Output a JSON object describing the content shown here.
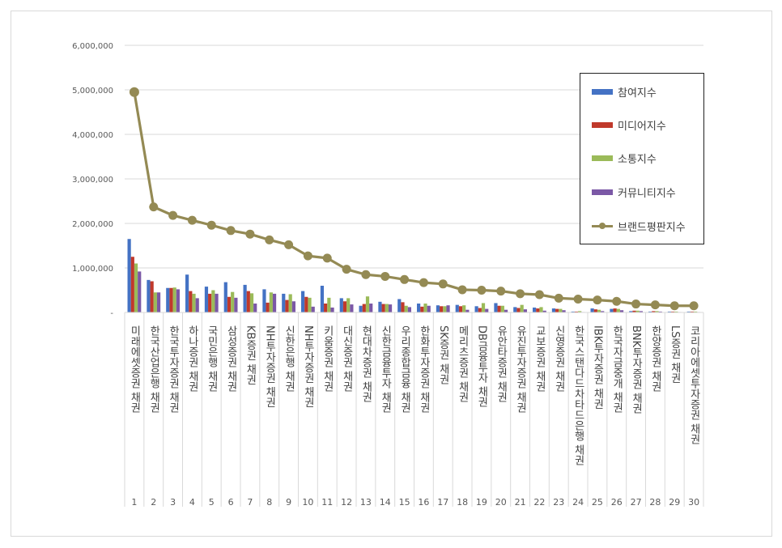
{
  "colors": {
    "participation": "#4472c4",
    "media": "#c0392b",
    "communication": "#9bbb59",
    "community": "#7b58a6",
    "brand": "#948a54",
    "grid": "#d9d9d9"
  },
  "chart_data": {
    "type": "bar",
    "combo_line_series": "브랜드평판지수",
    "ylim": [
      0,
      6000000
    ],
    "y_ticks": [
      "6,000,000",
      "5,000,000",
      "4,000,000",
      "3,000,000",
      "2,000,000",
      "1,000,000",
      "-"
    ],
    "y_tick_values": [
      6000000,
      5000000,
      4000000,
      3000000,
      2000000,
      1000000,
      0
    ],
    "grid": true,
    "legend_position": "right",
    "categories": [
      "미래에셋증권 채권",
      "한국산업은행 채권",
      "한국투자증권 채권",
      "하나증권 채권",
      "국민은행 채권",
      "삼성증권 채권",
      "KB증권 채권",
      "NH투자증권 채권",
      "신한은행 채권",
      "NH투자증권 채권",
      "키움증권 채권",
      "대신증권 채권",
      "현대차증권 채권",
      "신한금융투자 채권",
      "우리종합금융 채권",
      "한화투자증권 채권",
      "SK증권 채권",
      "메리츠증권 채권",
      "DB금융투자 채권",
      "유안타증권 채권",
      "유진투자증권 채권",
      "교보증권 채권",
      "신영증권 채권",
      "한국스탠다드차타드은행 채권",
      "IBK투자증권 채권",
      "한국자금중개 채권",
      "BNK투자증권 채권",
      "한양증권 채권",
      "LS증권 채권",
      "코리아에셋투자증권 채권"
    ],
    "ranks": [
      "1",
      "2",
      "3",
      "4",
      "5",
      "6",
      "7",
      "8",
      "9",
      "10",
      "11",
      "12",
      "13",
      "14",
      "15",
      "16",
      "17",
      "18",
      "19",
      "20",
      "21",
      "22",
      "23",
      "24",
      "25",
      "26",
      "27",
      "28",
      "29",
      "30"
    ],
    "series": [
      {
        "name": "참여지수",
        "kind": "bar",
        "values": [
          1650000,
          730000,
          550000,
          850000,
          580000,
          680000,
          620000,
          520000,
          420000,
          480000,
          600000,
          320000,
          150000,
          240000,
          300000,
          200000,
          160000,
          170000,
          140000,
          210000,
          120000,
          110000,
          90000,
          20000,
          90000,
          80000,
          30000,
          20000,
          20000,
          20000
        ]
      },
      {
        "name": "미디어지수",
        "kind": "bar",
        "values": [
          1250000,
          700000,
          550000,
          480000,
          420000,
          350000,
          480000,
          220000,
          280000,
          350000,
          200000,
          250000,
          190000,
          190000,
          230000,
          130000,
          140000,
          140000,
          100000,
          150000,
          100000,
          90000,
          80000,
          20000,
          70000,
          90000,
          40000,
          30000,
          20000,
          20000
        ]
      },
      {
        "name": "소통지수",
        "kind": "bar",
        "values": [
          1100000,
          450000,
          560000,
          420000,
          500000,
          460000,
          430000,
          450000,
          410000,
          330000,
          330000,
          320000,
          360000,
          190000,
          150000,
          200000,
          140000,
          160000,
          210000,
          150000,
          170000,
          120000,
          80000,
          30000,
          60000,
          80000,
          40000,
          30000,
          20000,
          20000
        ]
      },
      {
        "name": "커뮤니티지수",
        "kind": "bar",
        "values": [
          920000,
          450000,
          520000,
          320000,
          420000,
          330000,
          200000,
          420000,
          250000,
          130000,
          110000,
          180000,
          200000,
          180000,
          120000,
          150000,
          160000,
          60000,
          80000,
          60000,
          70000,
          40000,
          50000,
          10000,
          30000,
          50000,
          30000,
          20000,
          10000,
          10000
        ]
      },
      {
        "name": "브랜드평판지수",
        "kind": "line",
        "values": [
          4950000,
          2370000,
          2180000,
          2070000,
          1960000,
          1840000,
          1760000,
          1630000,
          1520000,
          1270000,
          1220000,
          970000,
          850000,
          810000,
          740000,
          670000,
          640000,
          510000,
          500000,
          480000,
          420000,
          400000,
          320000,
          300000,
          280000,
          250000,
          190000,
          170000,
          150000,
          150000
        ]
      }
    ]
  }
}
